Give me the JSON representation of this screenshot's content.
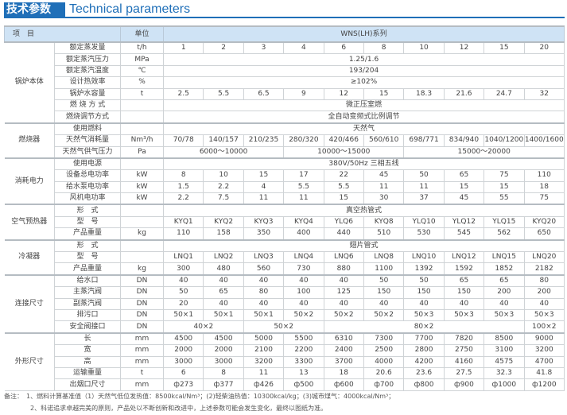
{
  "title": {
    "cn": "技术参数",
    "en": "Technical parameters"
  },
  "header": {
    "item": "项　目",
    "unit": "单位",
    "series": "WNS(LH)系列"
  },
  "groups": [
    {
      "name": "锅炉本体",
      "rows": [
        {
          "item": "额定蒸发量",
          "unit": "t/h",
          "cells": [
            {
              "t": "1"
            },
            {
              "t": "2"
            },
            {
              "t": "3"
            },
            {
              "t": "4"
            },
            {
              "t": "6"
            },
            {
              "t": "8"
            },
            {
              "t": "10"
            },
            {
              "t": "12"
            },
            {
              "t": "15"
            },
            {
              "t": "20"
            }
          ]
        },
        {
          "item": "额定蒸汽压力",
          "unit": "MPa",
          "cells": [
            {
              "t": "1.25/1.6",
              "span": 10
            }
          ]
        },
        {
          "item": "额定蒸汽温度",
          "unit": "℃",
          "cells": [
            {
              "t": "193/204",
              "span": 10
            }
          ]
        },
        {
          "item": "设计热效率",
          "unit": "%",
          "cells": [
            {
              "t": "≥102%",
              "span": 10
            }
          ]
        },
        {
          "item": "锅炉水容量",
          "unit": "t",
          "cells": [
            {
              "t": "2.5"
            },
            {
              "t": "5.5"
            },
            {
              "t": "6.5"
            },
            {
              "t": "9"
            },
            {
              "t": "12"
            },
            {
              "t": "15"
            },
            {
              "t": "18.3"
            },
            {
              "t": "21.6"
            },
            {
              "t": "24.7"
            },
            {
              "t": "32"
            }
          ]
        },
        {
          "item": "燃 烧 方 式",
          "unit": "",
          "cells": [
            {
              "t": "微正压室燃",
              "span": 10
            }
          ]
        },
        {
          "item": "燃烧调节方式",
          "unit": "",
          "cells": [
            {
              "t": "全自动变频式比例调节",
              "span": 10
            }
          ]
        }
      ]
    },
    {
      "name": "燃烧器",
      "rows": [
        {
          "item": "使用燃料",
          "unit": "",
          "cells": [
            {
              "t": "天然气",
              "span": 10
            }
          ]
        },
        {
          "item": "天然气消耗量",
          "unit": "Nm³/h",
          "cells": [
            {
              "t": "70/78"
            },
            {
              "t": "140/157"
            },
            {
              "t": "210/235"
            },
            {
              "t": "280/320"
            },
            {
              "t": "420/466"
            },
            {
              "t": "560/610"
            },
            {
              "t": "698/771"
            },
            {
              "t": "834/940"
            },
            {
              "t": "1040/1200"
            },
            {
              "t": "1400/1600"
            }
          ]
        },
        {
          "item": "天然气供气压力",
          "unit": "Pa",
          "cells": [
            {
              "t": "6000～10000",
              "span": 3
            },
            {
              "t": "10000～15000",
              "span": 3
            },
            {
              "t": "15000～20000",
              "span": 4
            }
          ]
        }
      ]
    },
    {
      "name": "消耗电力",
      "rows": [
        {
          "item": "使用电源",
          "unit": "",
          "cells": [
            {
              "t": "380V/50Hz 三相五线",
              "span": 10
            }
          ]
        },
        {
          "item": "设备总电功率",
          "unit": "kW",
          "cells": [
            {
              "t": "8"
            },
            {
              "t": "10"
            },
            {
              "t": "15"
            },
            {
              "t": "17"
            },
            {
              "t": "22"
            },
            {
              "t": "45"
            },
            {
              "t": "50"
            },
            {
              "t": "65"
            },
            {
              "t": "75"
            },
            {
              "t": "110"
            }
          ]
        },
        {
          "item": "给水泵电功率",
          "unit": "kW",
          "cells": [
            {
              "t": "1.5"
            },
            {
              "t": "2.2"
            },
            {
              "t": "4"
            },
            {
              "t": "5.5"
            },
            {
              "t": "5.5"
            },
            {
              "t": "11"
            },
            {
              "t": "11"
            },
            {
              "t": "15"
            },
            {
              "t": "15"
            },
            {
              "t": "18"
            }
          ]
        },
        {
          "item": "风机电功率",
          "unit": "kW",
          "cells": [
            {
              "t": "2.2"
            },
            {
              "t": "7.5"
            },
            {
              "t": "11"
            },
            {
              "t": "11"
            },
            {
              "t": "15"
            },
            {
              "t": "30"
            },
            {
              "t": "37"
            },
            {
              "t": "45"
            },
            {
              "t": "55"
            },
            {
              "t": "75"
            }
          ]
        }
      ]
    },
    {
      "name": "空气预热器",
      "rows": [
        {
          "item": "形　式",
          "unit": "",
          "cells": [
            {
              "t": "真空热管式",
              "span": 10
            }
          ]
        },
        {
          "item": "型　号",
          "unit": "",
          "cells": [
            {
              "t": "KYQ1"
            },
            {
              "t": "KYQ2"
            },
            {
              "t": "KYQ3"
            },
            {
              "t": "KYQ4"
            },
            {
              "t": "YLQ6"
            },
            {
              "t": "KYQ8"
            },
            {
              "t": "YLQ10"
            },
            {
              "t": "YLQ12"
            },
            {
              "t": "YLQ15"
            },
            {
              "t": "KYQ20"
            }
          ]
        },
        {
          "item": "产品重量",
          "unit": "kg",
          "cells": [
            {
              "t": "110"
            },
            {
              "t": "158"
            },
            {
              "t": "350"
            },
            {
              "t": "400"
            },
            {
              "t": "440"
            },
            {
              "t": "510"
            },
            {
              "t": "530"
            },
            {
              "t": "545"
            },
            {
              "t": "562"
            },
            {
              "t": "650"
            }
          ]
        }
      ]
    },
    {
      "name": "冷凝器",
      "rows": [
        {
          "item": "形　式",
          "unit": "",
          "cells": [
            {
              "t": "翅片管式",
              "span": 10
            }
          ]
        },
        {
          "item": "型　号",
          "unit": "",
          "cells": [
            {
              "t": "LNQ1"
            },
            {
              "t": "LNQ2"
            },
            {
              "t": "LNQ3"
            },
            {
              "t": "LNQ4"
            },
            {
              "t": "LNQ6"
            },
            {
              "t": "LNQ8"
            },
            {
              "t": "LNQ10"
            },
            {
              "t": "LNQ12"
            },
            {
              "t": "LNQ15"
            },
            {
              "t": "LNQ20"
            }
          ]
        },
        {
          "item": "产品重量",
          "unit": "kg",
          "cells": [
            {
              "t": "300"
            },
            {
              "t": "480"
            },
            {
              "t": "560"
            },
            {
              "t": "730"
            },
            {
              "t": "880"
            },
            {
              "t": "1100"
            },
            {
              "t": "1392"
            },
            {
              "t": "1592"
            },
            {
              "t": "1852"
            },
            {
              "t": "2182"
            }
          ]
        }
      ]
    },
    {
      "name": "连接尺寸",
      "rows": [
        {
          "item": "给水口",
          "unit": "DN",
          "cells": [
            {
              "t": "40"
            },
            {
              "t": "40"
            },
            {
              "t": "40"
            },
            {
              "t": "40"
            },
            {
              "t": "40"
            },
            {
              "t": "50"
            },
            {
              "t": "50"
            },
            {
              "t": "65"
            },
            {
              "t": "65"
            },
            {
              "t": "80"
            }
          ]
        },
        {
          "item": "主蒸汽阀",
          "unit": "DN",
          "cells": [
            {
              "t": "50"
            },
            {
              "t": "65"
            },
            {
              "t": "80"
            },
            {
              "t": "100"
            },
            {
              "t": "125"
            },
            {
              "t": "150"
            },
            {
              "t": "150"
            },
            {
              "t": "150"
            },
            {
              "t": "200"
            },
            {
              "t": "200"
            }
          ]
        },
        {
          "item": "副蒸汽阀",
          "unit": "DN",
          "cells": [
            {
              "t": "20"
            },
            {
              "t": "40"
            },
            {
              "t": "40"
            },
            {
              "t": "40"
            },
            {
              "t": "40"
            },
            {
              "t": "40"
            },
            {
              "t": "40"
            },
            {
              "t": "40"
            },
            {
              "t": "40"
            },
            {
              "t": "40"
            }
          ]
        },
        {
          "item": "排污口",
          "unit": "DN",
          "cells": [
            {
              "t": "50×1"
            },
            {
              "t": "50×1"
            },
            {
              "t": "50×1"
            },
            {
              "t": "50×2"
            },
            {
              "t": "50×2"
            },
            {
              "t": "50×2"
            },
            {
              "t": "50×3"
            },
            {
              "t": "50×3"
            },
            {
              "t": "50×3"
            },
            {
              "t": "50×3"
            }
          ]
        },
        {
          "item": "安全阀接口",
          "unit": "DN",
          "cells": [
            {
              "t": "40×2",
              "span": 2
            },
            {
              "t": "50×2",
              "span": 2
            },
            {
              "t": "80×2",
              "span": 5
            },
            {
              "t": "100×2"
            }
          ]
        }
      ]
    },
    {
      "name": "外形尺寸",
      "rows": [
        {
          "item": "长",
          "unit": "mm",
          "cells": [
            {
              "t": "4500"
            },
            {
              "t": "4500"
            },
            {
              "t": "5000"
            },
            {
              "t": "5500"
            },
            {
              "t": "6310"
            },
            {
              "t": "7300"
            },
            {
              "t": "7700"
            },
            {
              "t": "7820"
            },
            {
              "t": "8500"
            },
            {
              "t": "9000"
            }
          ]
        },
        {
          "item": "宽",
          "unit": "mm",
          "cells": [
            {
              "t": "2000"
            },
            {
              "t": "2000"
            },
            {
              "t": "2100"
            },
            {
              "t": "2200"
            },
            {
              "t": "2400"
            },
            {
              "t": "2500"
            },
            {
              "t": "2800"
            },
            {
              "t": "2750"
            },
            {
              "t": "3100"
            },
            {
              "t": "3200"
            }
          ]
        },
        {
          "item": "高",
          "unit": "mm",
          "cells": [
            {
              "t": "3000"
            },
            {
              "t": "3000"
            },
            {
              "t": "3200"
            },
            {
              "t": "3300"
            },
            {
              "t": "3700"
            },
            {
              "t": "4000"
            },
            {
              "t": "4200"
            },
            {
              "t": "4160"
            },
            {
              "t": "4575"
            },
            {
              "t": "4700"
            }
          ]
        },
        {
          "item": "运输重量",
          "unit": "t",
          "cells": [
            {
              "t": "6"
            },
            {
              "t": "8"
            },
            {
              "t": "11"
            },
            {
              "t": "13"
            },
            {
              "t": "18"
            },
            {
              "t": "20.6"
            },
            {
              "t": "23.6"
            },
            {
              "t": "27.5"
            },
            {
              "t": "32.3"
            },
            {
              "t": "41.8"
            }
          ]
        },
        {
          "item": "出烟口尺寸",
          "unit": "mm",
          "cells": [
            {
              "t": "ф273"
            },
            {
              "t": "ф377"
            },
            {
              "t": "ф426"
            },
            {
              "t": "ф500"
            },
            {
              "t": "ф600"
            },
            {
              "t": "ф700"
            },
            {
              "t": "ф800"
            },
            {
              "t": "ф900"
            },
            {
              "t": "ф1000"
            },
            {
              "t": "ф1200"
            }
          ]
        }
      ]
    }
  ],
  "notes": {
    "line1": "备注：　1、燃料计算基准值（1）天然气低位发热值：8500kcal/Nm³；(2)轻柴油热值：10300kcal/kg；(3)城市煤气：4000kcal/Nm³；",
    "line2": "2、科诺追求卓越完美的原则，产品处以不断创新和改进中，上述参数可能会发生变化，最终以图纸为准。"
  },
  "colors": {
    "brand_blue": "#1f6fb8",
    "header_bg": "#cfe3f5"
  }
}
